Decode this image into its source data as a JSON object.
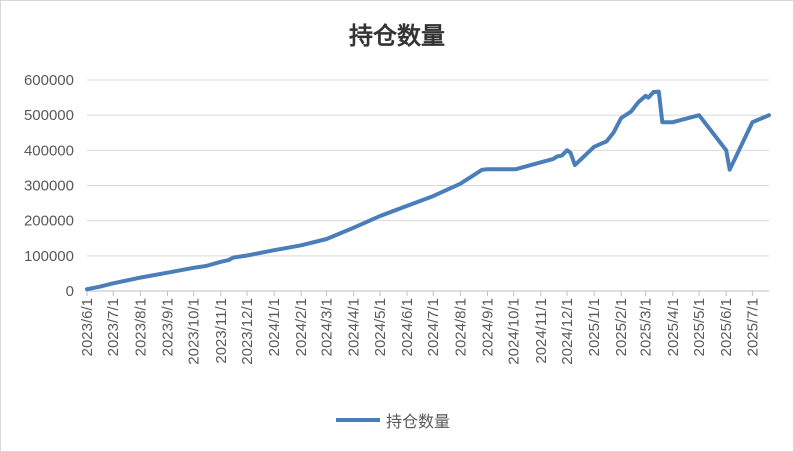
{
  "chart_data": {
    "type": "line",
    "title": "持仓数量",
    "xlabel": "",
    "ylabel": "",
    "ylim": [
      0,
      600000
    ],
    "y_ticks": [
      0,
      100000,
      200000,
      300000,
      400000,
      500000,
      600000
    ],
    "x_ticks": [
      "2023/6/1",
      "2023/7/1",
      "2023/8/1",
      "2023/9/1",
      "2023/10/1",
      "2023/11/1",
      "2023/12/1",
      "2024/1/1",
      "2024/2/1",
      "2024/3/1",
      "2024/4/1",
      "2024/5/1",
      "2024/6/1",
      "2024/7/1",
      "2024/8/1",
      "2024/9/1",
      "2024/10/1",
      "2024/11/1",
      "2024/12/1",
      "2025/1/1",
      "2025/2/1",
      "2025/3/1",
      "2025/4/1",
      "2025/5/1",
      "2025/6/1",
      "2025/7/1"
    ],
    "grid": true,
    "legend_position": "bottom",
    "color": "#4a7ebb",
    "series": [
      {
        "name": "持仓数量",
        "x": [
          "2023/6/1",
          "2023/6/15",
          "2023/7/1",
          "2023/8/1",
          "2023/9/1",
          "2023/10/1",
          "2023/10/15",
          "2023/11/1",
          "2023/11/10",
          "2023/11/15",
          "2023/12/1",
          "2024/1/1",
          "2024/2/1",
          "2024/3/1",
          "2024/4/1",
          "2024/5/1",
          "2024/6/1",
          "2024/7/1",
          "2024/8/1",
          "2024/8/26",
          "2024/9/1",
          "2024/10/1",
          "2024/10/3",
          "2024/11/1",
          "2024/11/15",
          "2024/11/20",
          "2024/11/25",
          "2024/12/1",
          "2024/12/5",
          "2024/12/10",
          "2025/1/1",
          "2025/1/10",
          "2025/1/15",
          "2025/1/23",
          "2025/2/1",
          "2025/2/12",
          "2025/2/16",
          "2025/2/21",
          "2025/3/1",
          "2025/3/4",
          "2025/3/10",
          "2025/3/16",
          "2025/3/20",
          "2025/4/1",
          "2025/5/1",
          "2025/6/1",
          "2025/6/5",
          "2025/7/1",
          "2025/7/20"
        ],
        "values": [
          5000,
          12000,
          22000,
          38000,
          52000,
          66000,
          71000,
          83000,
          88000,
          95000,
          101000,
          116000,
          130000,
          148000,
          180000,
          213000,
          242000,
          270000,
          305000,
          345000,
          346000,
          346000,
          346000,
          366000,
          375000,
          383000,
          385000,
          400000,
          393000,
          358000,
          410000,
          420000,
          425000,
          450000,
          492000,
          510000,
          522000,
          538000,
          555000,
          550000,
          566000,
          567000,
          480000,
          480000,
          500000,
          400000,
          345000,
          480000,
          500000
        ]
      }
    ]
  },
  "legend": {
    "label": "持仓数量"
  }
}
